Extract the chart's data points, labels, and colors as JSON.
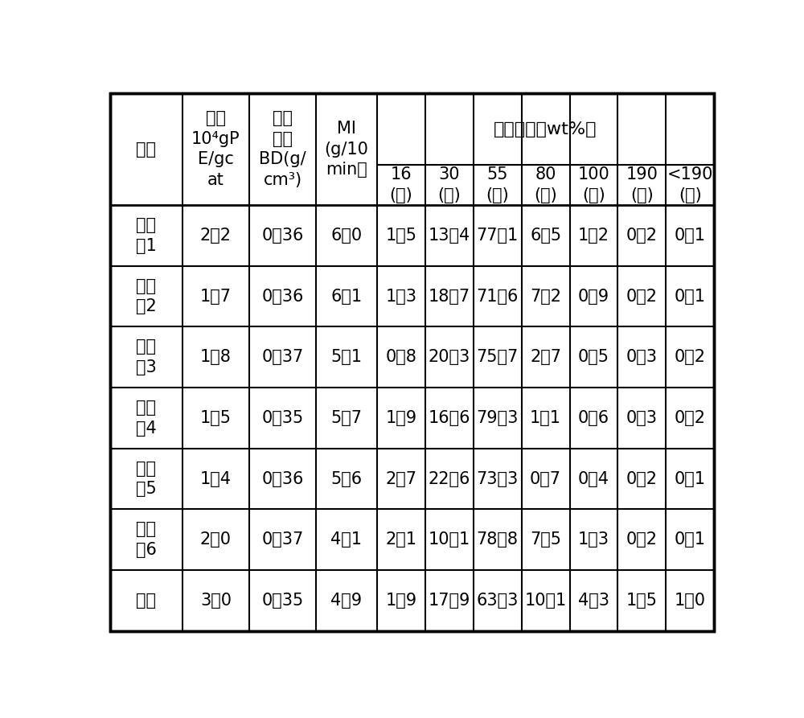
{
  "header_col1_texts": [
    "编号",
    "活性\n10⁴gP\nE/gc\nat",
    "堆积\n密度\nBD(g/\ncm³)",
    "MI\n(g/10\nmin）"
  ],
  "header_particle_label": "粒度分布（wt%）",
  "header_mesh_labels": [
    "16\n(目)",
    "30\n(目)",
    "55\n(目)",
    "80\n(目)",
    "100\n(目)",
    "190\n(目)",
    "<190\n(目)"
  ],
  "rows": [
    [
      "实施\n例1",
      "2．2",
      "0．36",
      "6．0",
      "1．5",
      "13．4",
      "77．1",
      "6．5",
      "1．2",
      "0．2",
      "0．1"
    ],
    [
      "实施\n例2",
      "1．7",
      "0．36",
      "6．1",
      "1．3",
      "18．7",
      "71．6",
      "7．2",
      "0．9",
      "0．2",
      "0．1"
    ],
    [
      "实施\n例3",
      "1．8",
      "0．37",
      "5．1",
      "0．8",
      "20．3",
      "75．7",
      "2．7",
      "0．5",
      "0．3",
      "0．2"
    ],
    [
      "实施\n例4",
      "1．5",
      "0．35",
      "5．7",
      "1．9",
      "16．6",
      "79．3",
      "1．1",
      "0．6",
      "0．3",
      "0．2"
    ],
    [
      "实施\n例5",
      "1．4",
      "0．36",
      "5．6",
      "2．7",
      "22．6",
      "73．3",
      "0．7",
      "0．4",
      "0．2",
      "0．1"
    ],
    [
      "实施\n例6",
      "2．0",
      "0．37",
      "4．1",
      "2．1",
      "10．1",
      "78．8",
      "7．5",
      "1．3",
      "0．2",
      "0．1"
    ],
    [
      "对比",
      "3．0",
      "0．35",
      "4．9",
      "1．9",
      "17．9",
      "63．3",
      "10．1",
      "4．3",
      "1．5",
      "1．0"
    ]
  ],
  "bg_color": "#ffffff",
  "line_color": "#000000",
  "text_color": "#000000",
  "font_size": 15,
  "header_font_size": 15
}
